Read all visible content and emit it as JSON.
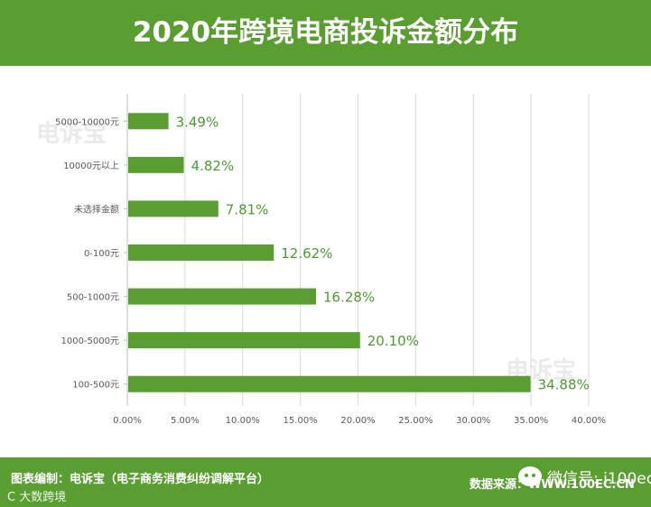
{
  "header": {
    "title": "2020年跨境电商投诉金额分布"
  },
  "footer": {
    "left_text": "图表编制：电诉宝（电子商务消费纠纷调解平台）",
    "right_text": "数据来源：WWW.100EC.CN",
    "wechat_text": "微信号: i100ec",
    "corner_text": "C 大数跨境"
  },
  "watermark": {
    "text": "电诉宝"
  },
  "colors": {
    "bar": "#5a9e32",
    "label": "#4d9b2e",
    "grid": "#d9d9d9",
    "axis_text": "#595959",
    "band": "#5a9e32"
  },
  "chart_data": {
    "type": "bar",
    "orientation": "horizontal",
    "title": "2020年跨境电商投诉金额分布",
    "categories": [
      "5000-10000元",
      "10000元以上",
      "未选择金额",
      "0-100元",
      "500-1000元",
      "1000-5000元",
      "100-500元"
    ],
    "values": [
      3.49,
      4.82,
      7.81,
      12.62,
      16.28,
      20.1,
      34.88
    ],
    "value_labels": [
      "3.49%",
      "4.82%",
      "7.81%",
      "12.62%",
      "16.28%",
      "20.10%",
      "34.88%"
    ],
    "xlim": [
      0,
      40
    ],
    "xticks": [
      "0.00%",
      "5.00%",
      "10.00%",
      "15.00%",
      "20.00%",
      "25.00%",
      "30.00%",
      "35.00%",
      "40.00%"
    ],
    "grid": true,
    "xlabel": "",
    "ylabel": ""
  }
}
